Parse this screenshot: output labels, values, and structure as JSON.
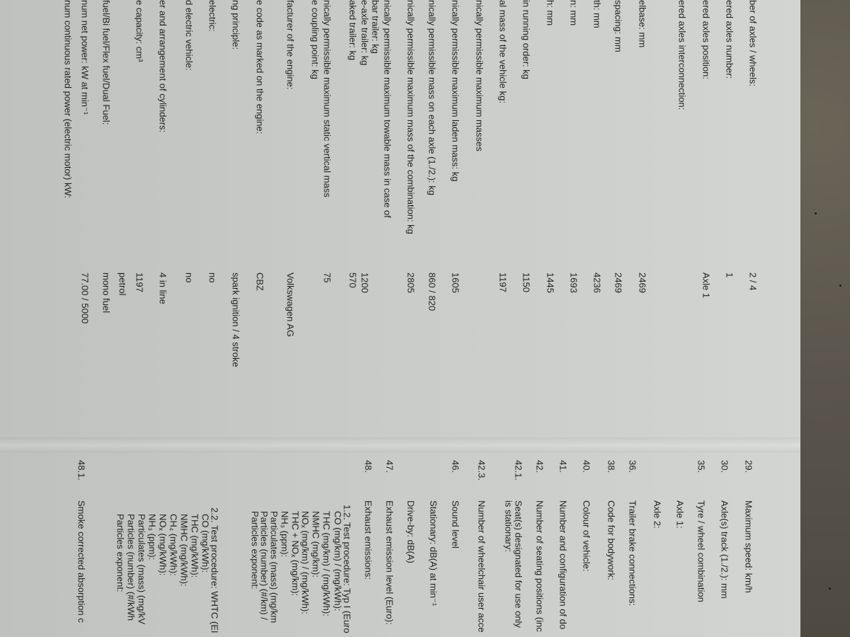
{
  "left_page": {
    "rows": [
      {
        "label": "ber of axles / wheels:",
        "value": "2 / 4"
      },
      {
        "label": "ered axles number:",
        "value": "1"
      },
      {
        "label": "ered axles position:",
        "value": "Axle 1"
      },
      {
        "label": "ered axles interconnection:",
        "value": ""
      },
      {
        "label": "elbase: mm",
        "value": "2469"
      },
      {
        "label": "spacing: mm",
        "value": "2469"
      },
      {
        "label": "th: mm",
        "value": "4236"
      },
      {
        "label": "n: mm",
        "value": "1693"
      },
      {
        "label": "h: mm",
        "value": "1445"
      },
      {
        "label": "in running order: kg",
        "value": "1150"
      },
      {
        "label": "al mass of the vehicle kg:",
        "value": "1197"
      },
      {
        "label": "nically permissible maximum masses",
        "value": ""
      },
      {
        "label": "nically permissible maximum laden mass: kg",
        "value": "1605"
      },
      {
        "label": "nically permissible mass on each axle (1./2.): kg",
        "value": "860 / 820"
      },
      {
        "label": "nically permissible maximum mass of the combination: kg",
        "value": "2805"
      },
      {
        "label": "nically permissible maximum towable mass in case of",
        "value": ""
      },
      {
        "label": "bar trailer: kg",
        "value": ""
      },
      {
        "label": "e-axle trailer: kg",
        "value": "1200"
      },
      {
        "label": "aked trailer: kg",
        "value": "570"
      },
      {
        "label": "nically permissible maximum static vertical mass",
        "value": "75"
      },
      {
        "label": "e coupling point: kg",
        "value": ""
      },
      {
        "label": "facturer of the engine:",
        "value": "Volkswagen AG"
      },
      {
        "label": "e code as marked on the engine:",
        "value": "CBZ"
      },
      {
        "label": "ng principle:",
        "value": "spark ignition / 4 stroke"
      },
      {
        "label": "electric:",
        "value": "no"
      },
      {
        "label": "d electric vehicle:",
        "value": "no"
      },
      {
        "label": "er and arrangement of cylinders:",
        "value": "4 in line"
      },
      {
        "label": "e capacity: cm³",
        "value": "1197"
      },
      {
        "label": "",
        "value": "petrol"
      },
      {
        "label": "fuel/Bi fuel/Flex fuel/Dual Fuel:",
        "value": "mono fuel"
      },
      {
        "label": "num net power: kW at min⁻¹",
        "value": "77.00 / 5000"
      },
      {
        "label": "num continuous rated power (electric motor) kW:",
        "value": ""
      }
    ]
  },
  "right_page": {
    "items": [
      {
        "number": "29.",
        "label": "Maximum speed: km/h"
      },
      {
        "number": "30.",
        "label": "Axle(s) track (1./2.): mm"
      },
      {
        "number": "35.",
        "label": "Tyre / wheel combination"
      },
      {
        "number": "",
        "label": "Axle 1:"
      },
      {
        "number": "",
        "label": "Axle 2:"
      },
      {
        "number": "36.",
        "label": "Trailer brake connections:"
      },
      {
        "number": "38.",
        "label": "Code for bodywork:"
      },
      {
        "number": "40.",
        "label": "Colour of vehicle:"
      },
      {
        "number": "41.",
        "label": "Number and configuration of do"
      },
      {
        "number": "42.",
        "label": "Number of seating positions (inc"
      },
      {
        "number": "42.1.",
        "label": "Seat(s) designated for use only"
      },
      {
        "number": "",
        "label": "is stationary:"
      },
      {
        "number": "42.3.",
        "label": "Number of wheelchair user acce"
      },
      {
        "number": "46.",
        "label": "Sound level"
      },
      {
        "number": "",
        "label": "Stationary: dB(A) at min⁻¹"
      },
      {
        "number": "",
        "label": "Drive-by: dB(A)"
      },
      {
        "number": "47.",
        "label": "Exhaust emission level (Euro):"
      },
      {
        "number": "48.",
        "label": "Exhaust emissions:"
      },
      {
        "number": "48.1.",
        "label": "Smoke corrected absorption c"
      }
    ],
    "test_procedure_1": {
      "heading": "1.2. Test procedure: Typ I (Euro",
      "lines": [
        "CO (mg/km) / (mg/kWh):",
        "THC (mg/km) / (mg/kWh):",
        "NMHC (mg/km):",
        "NOₓ (mg/km) / (mg/kWh):",
        "THC + NOₓ (mg/km):",
        "NH₃ (ppm):",
        "Particulates (mass) (mg/km",
        "Particles (number) (#/km) /",
        "Particles exponent:"
      ]
    },
    "test_procedure_2": {
      "heading": "2.2. Test procedure: WHTC (EI",
      "lines": [
        "CO (mg/kWh):",
        "THC (mg/kWh):",
        "NMHC (mg/kWh):",
        "CH₄ (mg/kWh):",
        "NOₓ (mg/kWh):",
        "NH₃ (ppm):",
        "Particulates (mass) (mg/kV",
        "Particles (number) (#/kWh",
        "Particles exponent:"
      ]
    }
  },
  "colors": {
    "paper": "#c9cbc9",
    "ink": "#1f2020",
    "background": "#5d584c"
  }
}
